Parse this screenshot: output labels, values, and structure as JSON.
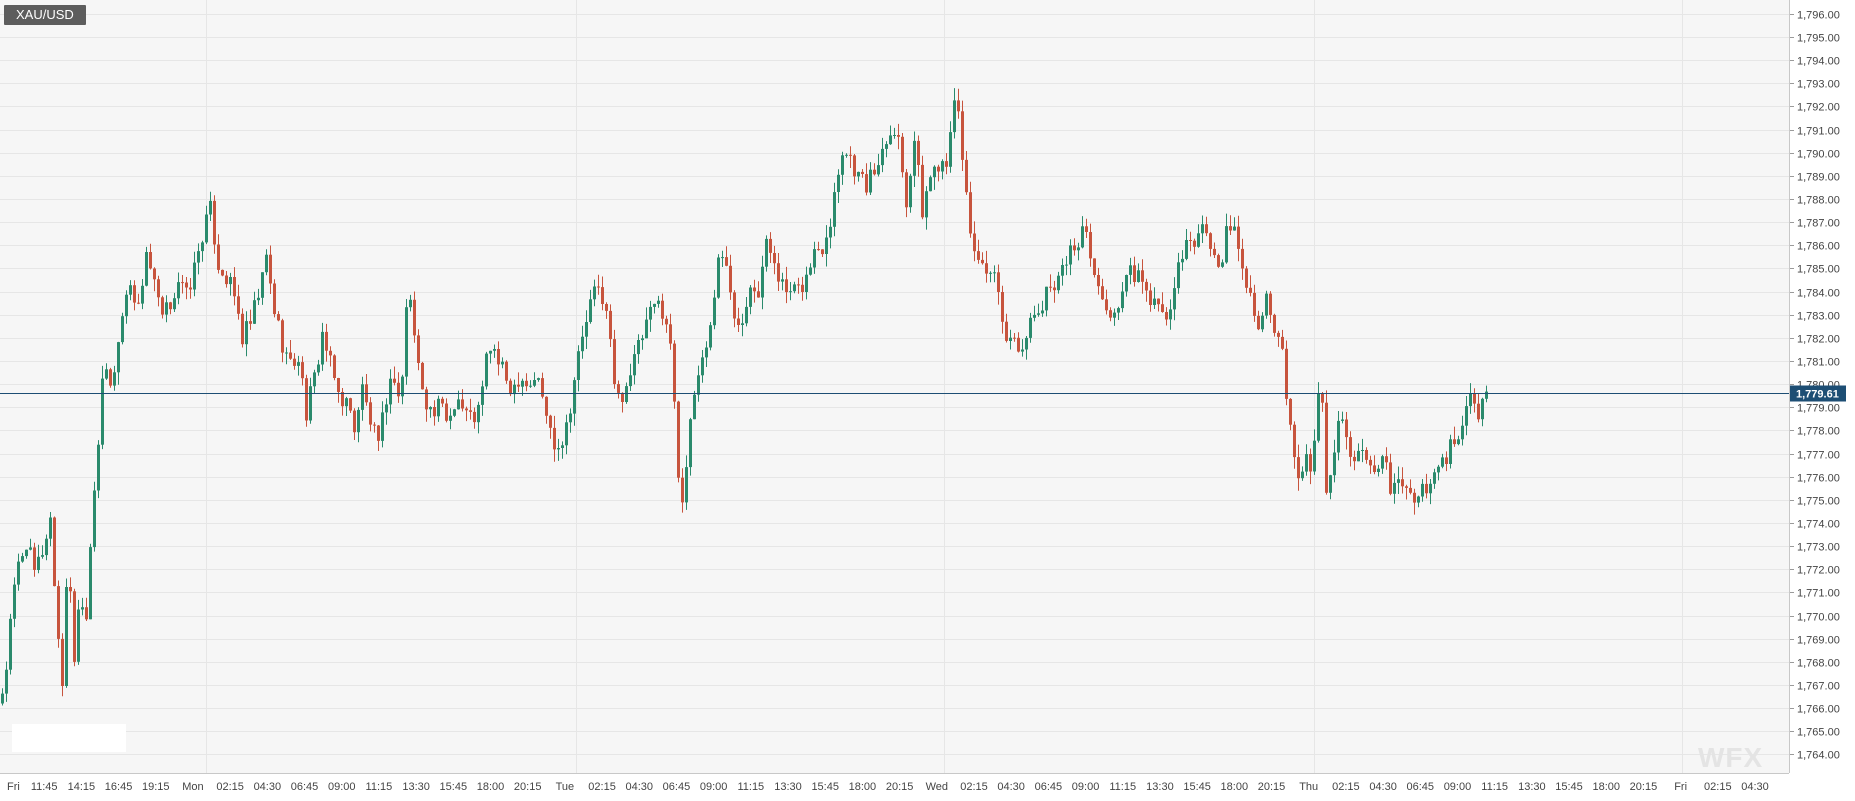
{
  "chart_data": {
    "type": "candlestick",
    "symbol": "XAU/USD",
    "last_price": "1,779.61",
    "ylim": [
      1763.2,
      1796.6
    ],
    "y_ticks": [
      "1,764.00",
      "1,765.00",
      "1,766.00",
      "1,767.00",
      "1,768.00",
      "1,769.00",
      "1,770.00",
      "1,771.00",
      "1,772.00",
      "1,773.00",
      "1,774.00",
      "1,775.00",
      "1,776.00",
      "1,777.00",
      "1,778.00",
      "1,779.00",
      "1,780.00",
      "1,781.00",
      "1,782.00",
      "1,783.00",
      "1,784.00",
      "1,785.00",
      "1,786.00",
      "1,787.00",
      "1,788.00",
      "1,789.00",
      "1,790.00",
      "1,791.00",
      "1,792.00",
      "1,793.00",
      "1,794.00",
      "1,795.00",
      "1,796.00"
    ],
    "x_ticks": [
      "Fri",
      "11:45",
      "14:15",
      "16:45",
      "19:15",
      "Mon",
      "02:15",
      "04:30",
      "06:45",
      "09:00",
      "11:15",
      "13:30",
      "15:45",
      "18:00",
      "20:15",
      "Tue",
      "02:15",
      "04:30",
      "06:45",
      "09:00",
      "11:15",
      "13:30",
      "15:45",
      "18:00",
      "20:15",
      "Wed",
      "02:15",
      "04:30",
      "06:45",
      "09:00",
      "11:15",
      "13:30",
      "15:45",
      "18:00",
      "20:15",
      "Thu",
      "02:15",
      "04:30",
      "06:45",
      "09:00",
      "11:15",
      "13:30",
      "15:45",
      "18:00",
      "20:15",
      "Fri",
      "02:15",
      "04:30"
    ],
    "path_points": [
      [
        0,
        1766.2
      ],
      [
        6,
        1767.8
      ],
      [
        12,
        1770.5
      ],
      [
        18,
        1772.2
      ],
      [
        26,
        1773.2
      ],
      [
        34,
        1771.8
      ],
      [
        42,
        1772.8
      ],
      [
        50,
        1774.2
      ],
      [
        56,
        1770.0
      ],
      [
        62,
        1767.2
      ],
      [
        68,
        1772.8
      ],
      [
        74,
        1768.2
      ],
      [
        80,
        1771.2
      ],
      [
        86,
        1770.0
      ],
      [
        92,
        1774.8
      ],
      [
        98,
        1777.5
      ],
      [
        104,
        1781.0
      ],
      [
        110,
        1779.8
      ],
      [
        116,
        1781.2
      ],
      [
        122,
        1783.0
      ],
      [
        130,
        1784.5
      ],
      [
        138,
        1783.2
      ],
      [
        146,
        1785.8
      ],
      [
        154,
        1784.2
      ],
      [
        162,
        1782.8
      ],
      [
        170,
        1783.5
      ],
      [
        178,
        1784.5
      ],
      [
        186,
        1783.8
      ],
      [
        194,
        1785.0
      ],
      [
        202,
        1786.5
      ],
      [
        210,
        1787.5
      ],
      [
        218,
        1785.2
      ],
      [
        226,
        1784.6
      ],
      [
        234,
        1783.8
      ],
      [
        242,
        1782.0
      ],
      [
        250,
        1782.6
      ],
      [
        258,
        1783.8
      ],
      [
        266,
        1785.4
      ],
      [
        274,
        1783.2
      ],
      [
        282,
        1781.8
      ],
      [
        290,
        1780.8
      ],
      [
        298,
        1781.2
      ],
      [
        306,
        1778.8
      ],
      [
        314,
        1780.2
      ],
      [
        322,
        1782.2
      ],
      [
        330,
        1780.8
      ],
      [
        338,
        1779.6
      ],
      [
        346,
        1779.2
      ],
      [
        354,
        1778.2
      ],
      [
        362,
        1779.8
      ],
      [
        370,
        1778.4
      ],
      [
        378,
        1777.2
      ],
      [
        386,
        1779.5
      ],
      [
        394,
        1780.4
      ],
      [
        400,
        1779.0
      ],
      [
        408,
        1784.6
      ],
      [
        416,
        1781.2
      ],
      [
        424,
        1779.6
      ],
      [
        432,
        1778.6
      ],
      [
        440,
        1779.1
      ],
      [
        448,
        1778.4
      ],
      [
        456,
        1779.6
      ],
      [
        464,
        1778.8
      ],
      [
        472,
        1778.5
      ],
      [
        480,
        1779.0
      ],
      [
        488,
        1781.8
      ],
      [
        496,
        1781.2
      ],
      [
        504,
        1780.3
      ],
      [
        512,
        1779.8
      ],
      [
        520,
        1780.5
      ],
      [
        528,
        1779.9
      ],
      [
        536,
        1780.4
      ],
      [
        544,
        1779.1
      ],
      [
        552,
        1777.6
      ],
      [
        560,
        1777.4
      ],
      [
        568,
        1778.6
      ],
      [
        576,
        1780.8
      ],
      [
        584,
        1782.4
      ],
      [
        592,
        1783.8
      ],
      [
        600,
        1784.2
      ],
      [
        608,
        1782.6
      ],
      [
        616,
        1779.2
      ],
      [
        624,
        1779.8
      ],
      [
        632,
        1780.8
      ],
      [
        640,
        1781.8
      ],
      [
        648,
        1782.8
      ],
      [
        656,
        1783.5
      ],
      [
        664,
        1783.2
      ],
      [
        672,
        1781.0
      ],
      [
        680,
        1774.6
      ],
      [
        686,
        1776.5
      ],
      [
        694,
        1779.6
      ],
      [
        702,
        1781.2
      ],
      [
        710,
        1782.4
      ],
      [
        718,
        1785.6
      ],
      [
        726,
        1785.0
      ],
      [
        734,
        1783.2
      ],
      [
        742,
        1782.8
      ],
      [
        750,
        1784.6
      ],
      [
        758,
        1784.0
      ],
      [
        766,
        1786.0
      ],
      [
        774,
        1785.5
      ],
      [
        782,
        1784.2
      ],
      [
        790,
        1783.8
      ],
      [
        798,
        1784.0
      ],
      [
        806,
        1784.6
      ],
      [
        814,
        1785.7
      ],
      [
        822,
        1786.0
      ],
      [
        830,
        1787.2
      ],
      [
        836,
        1788.8
      ],
      [
        842,
        1790.2
      ],
      [
        850,
        1789.8
      ],
      [
        858,
        1789.0
      ],
      [
        866,
        1788.6
      ],
      [
        874,
        1789.2
      ],
      [
        882,
        1790.2
      ],
      [
        890,
        1791.2
      ],
      [
        898,
        1790.6
      ],
      [
        906,
        1788.0
      ],
      [
        914,
        1790.6
      ],
      [
        922,
        1787.5
      ],
      [
        930,
        1789.0
      ],
      [
        938,
        1789.6
      ],
      [
        946,
        1789.8
      ],
      [
        952,
        1792.0
      ],
      [
        958,
        1791.6
      ],
      [
        964,
        1789.0
      ],
      [
        970,
        1786.6
      ],
      [
        978,
        1785.4
      ],
      [
        986,
        1784.4
      ],
      [
        994,
        1784.8
      ],
      [
        1002,
        1782.4
      ],
      [
        1010,
        1782.0
      ],
      [
        1018,
        1781.6
      ],
      [
        1026,
        1782.2
      ],
      [
        1034,
        1782.8
      ],
      [
        1042,
        1783.4
      ],
      [
        1050,
        1784.2
      ],
      [
        1058,
        1784.8
      ],
      [
        1066,
        1785.4
      ],
      [
        1074,
        1786.0
      ],
      [
        1082,
        1786.6
      ],
      [
        1090,
        1785.8
      ],
      [
        1098,
        1784.0
      ],
      [
        1106,
        1783.2
      ],
      [
        1114,
        1783.0
      ],
      [
        1122,
        1784.0
      ],
      [
        1130,
        1784.8
      ],
      [
        1138,
        1784.6
      ],
      [
        1146,
        1783.8
      ],
      [
        1154,
        1783.6
      ],
      [
        1162,
        1782.8
      ],
      [
        1170,
        1783.2
      ],
      [
        1178,
        1785.0
      ],
      [
        1186,
        1785.8
      ],
      [
        1194,
        1786.2
      ],
      [
        1202,
        1786.8
      ],
      [
        1210,
        1786.0
      ],
      [
        1218,
        1785.0
      ],
      [
        1226,
        1786.4
      ],
      [
        1234,
        1786.6
      ],
      [
        1242,
        1785.2
      ],
      [
        1250,
        1783.8
      ],
      [
        1258,
        1782.8
      ],
      [
        1266,
        1783.6
      ],
      [
        1274,
        1782.2
      ],
      [
        1282,
        1781.2
      ],
      [
        1290,
        1778.0
      ],
      [
        1298,
        1775.6
      ],
      [
        1306,
        1777.2
      ],
      [
        1312,
        1776.2
      ],
      [
        1320,
        1780.8
      ],
      [
        1326,
        1775.4
      ],
      [
        1334,
        1777.4
      ],
      [
        1340,
        1779.4
      ],
      [
        1346,
        1777.6
      ],
      [
        1352,
        1776.0
      ],
      [
        1360,
        1777.0
      ],
      [
        1368,
        1776.4
      ],
      [
        1376,
        1775.6
      ],
      [
        1382,
        1776.8
      ],
      [
        1390,
        1775.6
      ],
      [
        1398,
        1775.8
      ],
      [
        1406,
        1775.4
      ],
      [
        1414,
        1775.0
      ],
      [
        1422,
        1775.4
      ],
      [
        1430,
        1775.8
      ],
      [
        1438,
        1776.2
      ],
      [
        1446,
        1777.0
      ],
      [
        1454,
        1777.4
      ],
      [
        1462,
        1778.2
      ],
      [
        1470,
        1779.6
      ],
      [
        1478,
        1778.6
      ],
      [
        1486,
        1779.6
      ]
    ],
    "series": [
      {
        "name": "",
        "color_up": "#2a8a6c",
        "color_down": "#c7543d"
      }
    ]
  },
  "colors": {
    "up": "#2a8a6c",
    "down": "#c7543d",
    "price_line": "#1d4e74",
    "grid": "#e6e6e6",
    "plot_bg": "#f6f6f6",
    "axis_text": "#444444"
  },
  "watermark": "WFX"
}
